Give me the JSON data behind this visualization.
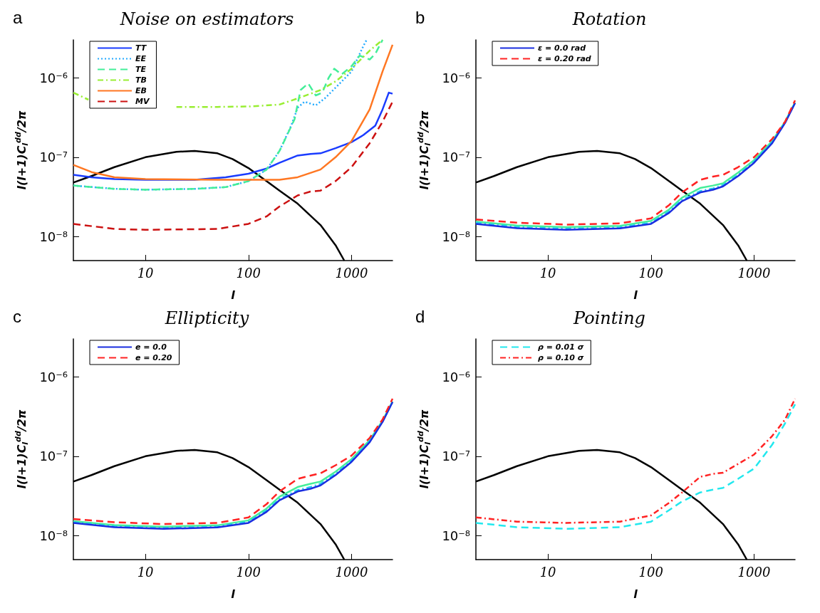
{
  "chart_data": [
    {
      "type": "line",
      "title": "Noise on estimators",
      "annotations": [
        "a"
      ],
      "xlabel": "l",
      "ylabel": "l(l+1)C$_{l}$$^{dd}$/2π",
      "log": "xy",
      "grid": false,
      "legend": "top left",
      "marker": "none",
      "xlim": [
        2,
        2500
      ],
      "ylim": [
        5e-09,
        3e-06
      ],
      "xticks": [
        10,
        100,
        1000
      ],
      "yticks": [
        {
          "value": 1e-08,
          "label": "10⁻⁸"
        },
        {
          "value": 1e-07,
          "label": "10⁻⁷"
        },
        {
          "value": 1e-06,
          "label": "10⁻⁶"
        }
      ],
      "series": [
        {
          "color": "#000000",
          "line_style": "solid",
          "x": [
            2,
            3,
            5,
            10,
            20,
            30,
            50,
            70,
            100,
            150,
            200,
            300,
            500,
            700,
            850
          ],
          "values": [
            4.8e-08,
            5.8e-08,
            7.5e-08,
            1e-07,
            1.17e-07,
            1.2e-07,
            1.12e-07,
            9.5e-08,
            7.3e-08,
            5e-08,
            3.8e-08,
            2.6e-08,
            1.4e-08,
            7.8e-09,
            5e-09
          ]
        },
        {
          "name": "TT",
          "color": "#1a3cff",
          "line_style": "solid",
          "x": [
            2,
            3,
            5,
            10,
            30,
            60,
            100,
            150,
            200,
            300,
            400,
            500,
            700,
            1000,
            1300,
            1700,
            2000,
            2300,
            2500
          ],
          "values": [
            6e-08,
            5.6e-08,
            5.3e-08,
            5.2e-08,
            5.2e-08,
            5.6e-08,
            6.2e-08,
            7.2e-08,
            8.5e-08,
            1.05e-07,
            1.1e-07,
            1.12e-07,
            1.3e-07,
            1.55e-07,
            1.9e-07,
            2.5e-07,
            4e-07,
            6.5e-07,
            6.3e-07
          ]
        },
        {
          "name": "EE",
          "color": "#22aaff",
          "line_style": "dotted",
          "x": [
            2,
            5,
            10,
            30,
            60,
            100,
            150,
            200,
            260,
            300,
            350,
            450,
            550,
            700,
            1000,
            1300,
            1400
          ],
          "values": [
            4.4e-08,
            4e-08,
            3.9e-08,
            4e-08,
            4.2e-08,
            5e-08,
            7e-08,
            1.2e-07,
            2.5e-07,
            4.2e-07,
            5e-07,
            4.5e-07,
            5.5e-07,
            7.5e-07,
            1.2e-06,
            2.5e-06,
            3e-06
          ]
        },
        {
          "name": "TE",
          "color": "#44ee99",
          "line_style": "dashed",
          "x": [
            2,
            5,
            10,
            30,
            60,
            100,
            150,
            200,
            280,
            320,
            380,
            450,
            520,
            600,
            680,
            800,
            1000,
            1200,
            1500,
            1700,
            2000
          ],
          "values": [
            4.4e-08,
            4e-08,
            3.9e-08,
            4e-08,
            4.2e-08,
            5e-08,
            7e-08,
            1.2e-07,
            3e-07,
            7e-07,
            8.5e-07,
            6e-07,
            6.5e-07,
            1e-06,
            1.3e-06,
            1.1e-06,
            1.4e-06,
            1.9e-06,
            1.7e-06,
            2e-06,
            3e-06
          ]
        },
        {
          "name": "TB",
          "color": "#99ee33",
          "line_style": "dashdot",
          "x": [
            2,
            2.8,
            5,
            10,
            20,
            50,
            100,
            200,
            300,
            500,
            700,
            1000,
            1500,
            2000
          ],
          "values": [
            6.5e-07,
            5.3e-07,
            null,
            null,
            4.3e-07,
            4.3e-07,
            4.35e-07,
            4.6e-07,
            5.5e-07,
            7e-07,
            9e-07,
            1.3e-06,
            2.2e-06,
            3e-06
          ]
        },
        {
          "name": "EB",
          "color": "#ff7722",
          "line_style": "solid",
          "x": [
            2,
            3,
            5,
            10,
            50,
            100,
            200,
            300,
            500,
            700,
            1000,
            1500,
            2000,
            2500
          ],
          "values": [
            8e-08,
            6.5e-08,
            5.6e-08,
            5.3e-08,
            5.2e-08,
            5.2e-08,
            5.2e-08,
            5.6e-08,
            7e-08,
            1e-07,
            1.6e-07,
            4e-07,
            1.2e-06,
            2.6e-06
          ]
        },
        {
          "name": "MV",
          "color": "#cc1111",
          "line_style": "dashed",
          "x": [
            2,
            5,
            10,
            50,
            100,
            150,
            200,
            300,
            400,
            500,
            700,
            1000,
            1500,
            2000,
            2500
          ],
          "values": [
            1.45e-08,
            1.25e-08,
            1.22e-08,
            1.25e-08,
            1.45e-08,
            1.8e-08,
            2.4e-08,
            3.3e-08,
            3.7e-08,
            3.8e-08,
            5e-08,
            7.5e-08,
            1.5e-07,
            2.8e-07,
            5e-07
          ]
        }
      ]
    },
    {
      "type": "line",
      "title": "Rotation",
      "annotations": [
        "b"
      ],
      "xlabel": "l",
      "ylabel": "l(l+1)C$_{l}$$^{dd}$/2π",
      "log": "xy",
      "grid": false,
      "legend": "top left",
      "marker": "none",
      "xlim": [
        2,
        2500
      ],
      "ylim": [
        5e-09,
        3e-06
      ],
      "xticks": [
        10,
        100,
        1000
      ],
      "yticks": [
        {
          "value": 1e-08,
          "label": "10⁻⁸"
        },
        {
          "value": 1e-07,
          "label": "10⁻⁷"
        },
        {
          "value": 1e-06,
          "label": "10⁻⁶"
        }
      ],
      "series": [
        {
          "color": "#000000",
          "line_style": "solid",
          "x": [
            2,
            3,
            5,
            10,
            20,
            30,
            50,
            70,
            100,
            150,
            200,
            300,
            500,
            700,
            850
          ],
          "values": [
            4.8e-08,
            5.8e-08,
            7.5e-08,
            1e-07,
            1.17e-07,
            1.2e-07,
            1.12e-07,
            9.5e-08,
            7.3e-08,
            5e-08,
            3.8e-08,
            2.6e-08,
            1.4e-08,
            7.8e-09,
            5e-09
          ]
        },
        {
          "color": "#44ee99",
          "line_style": "solid",
          "x": [
            2,
            5,
            15,
            50,
            100,
            150,
            200,
            300,
            400,
            500,
            700,
            1000,
            1500,
            2000,
            2500
          ],
          "values": [
            1.55e-08,
            1.38e-08,
            1.32e-08,
            1.37e-08,
            1.58e-08,
            2.2e-08,
            3.1e-08,
            4.1e-08,
            4.4e-08,
            4.7e-08,
            6.4e-08,
            9.2e-08,
            1.6e-07,
            2.8e-07,
            4.9e-07
          ]
        },
        {
          "color": "#22ccee",
          "line_style": "dashdot",
          "x": [
            2,
            5,
            15,
            50,
            100,
            150,
            200,
            300,
            400,
            500,
            700,
            1000,
            1500,
            2000,
            2500
          ],
          "values": [
            1.5e-08,
            1.32e-08,
            1.26e-08,
            1.31e-08,
            1.5e-08,
            2.08e-08,
            2.9e-08,
            3.75e-08,
            4.05e-08,
            4.45e-08,
            6e-08,
            8.8e-08,
            1.55e-07,
            2.75e-07,
            4.85e-07
          ]
        },
        {
          "name": "ε = 0.0 rad",
          "color": "#1a2ee0",
          "line_style": "solid",
          "x": [
            2,
            5,
            15,
            50,
            100,
            150,
            200,
            300,
            400,
            500,
            700,
            1000,
            1500,
            2000,
            2500
          ],
          "values": [
            1.45e-08,
            1.28e-08,
            1.22e-08,
            1.27e-08,
            1.45e-08,
            2e-08,
            2.8e-08,
            3.6e-08,
            3.9e-08,
            4.3e-08,
            5.8e-08,
            8.5e-08,
            1.5e-07,
            2.7e-07,
            4.8e-07
          ]
        },
        {
          "name": "ε = 0.20 rad",
          "color": "#ff2222",
          "line_style": "dashed",
          "x": [
            2,
            5,
            15,
            50,
            100,
            150,
            200,
            300,
            400,
            500,
            700,
            1000,
            1500,
            2000,
            2500
          ],
          "values": [
            1.65e-08,
            1.5e-08,
            1.42e-08,
            1.47e-08,
            1.7e-08,
            2.5e-08,
            3.6e-08,
            5.2e-08,
            5.7e-08,
            6e-08,
            7.5e-08,
            1e-07,
            1.7e-07,
            2.8e-07,
            5.2e-07
          ]
        }
      ]
    },
    {
      "type": "line",
      "title": "Ellipticity",
      "annotations": [
        "c"
      ],
      "xlabel": "l",
      "ylabel": "l(l+1)C$_{l}$$^{dd}$/2π",
      "log": "xy",
      "grid": false,
      "legend": "top left",
      "marker": "none",
      "xlim": [
        2,
        2500
      ],
      "ylim": [
        5e-09,
        3e-06
      ],
      "xticks": [
        10,
        100,
        1000
      ],
      "yticks": [
        {
          "value": 1e-08,
          "label": "10⁻⁸"
        },
        {
          "value": 1e-07,
          "label": "10⁻⁷"
        },
        {
          "value": 1e-06,
          "label": "10⁻⁶"
        }
      ],
      "series": [
        {
          "color": "#000000",
          "line_style": "solid",
          "x": [
            2,
            3,
            5,
            10,
            20,
            30,
            50,
            70,
            100,
            150,
            200,
            300,
            500,
            700,
            850
          ],
          "values": [
            4.8e-08,
            5.8e-08,
            7.5e-08,
            1e-07,
            1.17e-07,
            1.2e-07,
            1.12e-07,
            9.5e-08,
            7.3e-08,
            5e-08,
            3.8e-08,
            2.6e-08,
            1.4e-08,
            7.8e-09,
            5e-09
          ]
        },
        {
          "color": "#44ee99",
          "line_style": "solid",
          "x": [
            2,
            5,
            15,
            50,
            100,
            150,
            200,
            300,
            400,
            500,
            700,
            1000,
            1500,
            2000,
            2500
          ],
          "values": [
            1.52e-08,
            1.36e-08,
            1.3e-08,
            1.35e-08,
            1.56e-08,
            2.2e-08,
            3.1e-08,
            4.1e-08,
            4.5e-08,
            4.8e-08,
            6.4e-08,
            9.2e-08,
            1.6e-07,
            2.8e-07,
            4.9e-07
          ]
        },
        {
          "color": "#22ccee",
          "line_style": "dashdot",
          "x": [
            2,
            5,
            15,
            50,
            100,
            150,
            200,
            300,
            400,
            500,
            700,
            1000,
            1500,
            2000,
            2500
          ],
          "values": [
            1.48e-08,
            1.31e-08,
            1.25e-08,
            1.3e-08,
            1.5e-08,
            2.08e-08,
            2.9e-08,
            3.75e-08,
            4.1e-08,
            4.5e-08,
            6e-08,
            8.8e-08,
            1.55e-07,
            2.75e-07,
            4.85e-07
          ]
        },
        {
          "name": "e = 0.0",
          "color": "#1a2ee0",
          "line_style": "solid",
          "x": [
            2,
            5,
            15,
            50,
            100,
            150,
            200,
            300,
            400,
            500,
            700,
            1000,
            1500,
            2000,
            2500
          ],
          "values": [
            1.45e-08,
            1.28e-08,
            1.22e-08,
            1.27e-08,
            1.45e-08,
            2e-08,
            2.8e-08,
            3.6e-08,
            3.9e-08,
            4.3e-08,
            5.8e-08,
            8.5e-08,
            1.5e-07,
            2.7e-07,
            4.8e-07
          ]
        },
        {
          "name": "e = 0.20",
          "color": "#ff2222",
          "line_style": "dashed",
          "x": [
            2,
            5,
            15,
            50,
            100,
            150,
            200,
            300,
            400,
            500,
            700,
            1000,
            1500,
            2000,
            2500
          ],
          "values": [
            1.62e-08,
            1.48e-08,
            1.4e-08,
            1.45e-08,
            1.7e-08,
            2.5e-08,
            3.6e-08,
            5.2e-08,
            5.7e-08,
            6.1e-08,
            7.7e-08,
            1.02e-07,
            1.7e-07,
            2.9e-07,
            5.3e-07
          ]
        }
      ]
    },
    {
      "type": "line",
      "title": "Pointing",
      "annotations": [
        "d"
      ],
      "xlabel": "l",
      "ylabel": "l(l+1)C$_{l}$$^{dd}$/2π",
      "log": "xy",
      "grid": false,
      "legend": "top left",
      "marker": "none",
      "xlim": [
        2,
        2500
      ],
      "ylim": [
        5e-09,
        3e-06
      ],
      "xticks": [
        10,
        100,
        1000
      ],
      "yticks": [
        {
          "value": 1e-08,
          "label": "10⁻⁸"
        },
        {
          "value": 1e-07,
          "label": "10⁻⁷"
        },
        {
          "value": 1e-06,
          "label": "10⁻⁶"
        }
      ],
      "series": [
        {
          "color": "#000000",
          "line_style": "solid",
          "x": [
            2,
            3,
            5,
            10,
            20,
            30,
            50,
            70,
            100,
            150,
            200,
            300,
            500,
            700,
            850
          ],
          "values": [
            4.8e-08,
            5.8e-08,
            7.5e-08,
            1e-07,
            1.17e-07,
            1.2e-07,
            1.12e-07,
            9.5e-08,
            7.3e-08,
            5e-08,
            3.8e-08,
            2.6e-08,
            1.4e-08,
            7.8e-09,
            5e-09
          ]
        },
        {
          "name": "ρ = 0.01 σ",
          "color": "#22e8ee",
          "line_style": "dashed",
          "x": [
            2,
            5,
            15,
            50,
            100,
            150,
            200,
            300,
            400,
            500,
            700,
            1000,
            1500,
            2000,
            2500
          ],
          "values": [
            1.45e-08,
            1.28e-08,
            1.22e-08,
            1.28e-08,
            1.5e-08,
            2.1e-08,
            2.7e-08,
            3.5e-08,
            3.8e-08,
            4e-08,
            5.2e-08,
            7e-08,
            1.4e-07,
            2.6e-07,
            4.5e-07
          ]
        },
        {
          "name": "ρ = 0.10 σ",
          "color": "#ff2222",
          "line_style": "dashdot",
          "x": [
            2,
            5,
            15,
            50,
            100,
            150,
            200,
            300,
            400,
            500,
            700,
            1000,
            1500,
            2000,
            2500
          ],
          "values": [
            1.7e-08,
            1.5e-08,
            1.45e-08,
            1.5e-08,
            1.8e-08,
            2.6e-08,
            3.5e-08,
            5.5e-08,
            6e-08,
            6.2e-08,
            8e-08,
            1.05e-07,
            1.8e-07,
            2.9e-07,
            5.3e-07
          ]
        }
      ]
    }
  ]
}
